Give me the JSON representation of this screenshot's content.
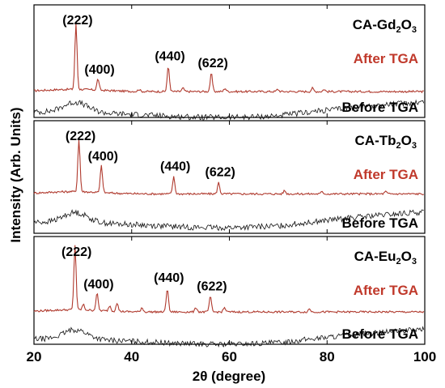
{
  "chart_data": {
    "type": "line",
    "xlabel": "2θ (degree)",
    "ylabel": "Intensity (Arb. Units)",
    "xlim": [
      20,
      100
    ],
    "x_ticks": [
      "20",
      "40",
      "60",
      "80",
      "100"
    ],
    "panels": [
      {
        "sample_prefix": "CA-Gd",
        "sample_sub1": "2",
        "sample_mid": "O",
        "sample_sub2": "3",
        "series": [
          {
            "name": "After TGA",
            "color": "#b03a2e",
            "base": 0.23,
            "peaks": [
              [
                28.6,
                0.58
              ],
              [
                33.1,
                0.1
              ],
              [
                41.5,
                0.02
              ],
              [
                47.5,
                0.22
              ],
              [
                50.5,
                0.03
              ],
              [
                56.3,
                0.16
              ],
              [
                59.1,
                0.03
              ],
              [
                69.9,
                0.02
              ],
              [
                77.0,
                0.03
              ],
              [
                79.4,
                0.02
              ]
            ],
            "peak_labels": [
              {
                "text": "(222)",
                "x": 28.6
              },
              {
                "text": "(400)",
                "x": 33.1
              },
              {
                "text": "(440)",
                "x": 47.5
              },
              {
                "text": "(622)",
                "x": 56.3
              }
            ]
          },
          {
            "name": "Before TGA",
            "color": "#111111",
            "base": 0.05
          }
        ]
      },
      {
        "sample_prefix": "CA-Tb",
        "sample_sub1": "2",
        "sample_mid": "O",
        "sample_sub2": "3",
        "series": [
          {
            "name": "After TGA",
            "color": "#b03a2e",
            "base": 0.35,
            "peaks": [
              [
                29.2,
                0.46
              ],
              [
                33.8,
                0.24
              ],
              [
                48.6,
                0.15
              ],
              [
                57.8,
                0.1
              ],
              [
                71.3,
                0.03
              ],
              [
                79.0,
                0.02
              ],
              [
                92.0,
                0.02
              ]
            ],
            "peak_labels": [
              {
                "text": "(222)",
                "x": 29.2
              },
              {
                "text": "(400)",
                "x": 33.8
              },
              {
                "text": "(440)",
                "x": 48.6
              },
              {
                "text": "(622)",
                "x": 57.8
              }
            ]
          },
          {
            "name": "Before TGA",
            "color": "#111111",
            "base": 0.1
          }
        ]
      },
      {
        "sample_prefix": "CA-Eu",
        "sample_sub1": "2",
        "sample_mid": "O",
        "sample_sub2": "3",
        "series": [
          {
            "name": "After TGA",
            "color": "#b03a2e",
            "base": 0.3,
            "peaks": [
              [
                28.4,
                0.6
              ],
              [
                30.1,
                0.05
              ],
              [
                32.9,
                0.16
              ],
              [
                35.5,
                0.05
              ],
              [
                37.0,
                0.08
              ],
              [
                42.1,
                0.04
              ],
              [
                47.3,
                0.22
              ],
              [
                53.2,
                0.04
              ],
              [
                56.1,
                0.14
              ],
              [
                59.0,
                0.04
              ],
              [
                76.4,
                0.03
              ]
            ],
            "peak_labels": [
              {
                "text": "(222)",
                "x": 28.4
              },
              {
                "text": "(400)",
                "x": 32.9
              },
              {
                "text": "(440)",
                "x": 47.3
              },
              {
                "text": "(622)",
                "x": 56.1
              }
            ]
          },
          {
            "name": "Before TGA",
            "color": "#111111",
            "base": 0.05
          }
        ]
      }
    ]
  }
}
